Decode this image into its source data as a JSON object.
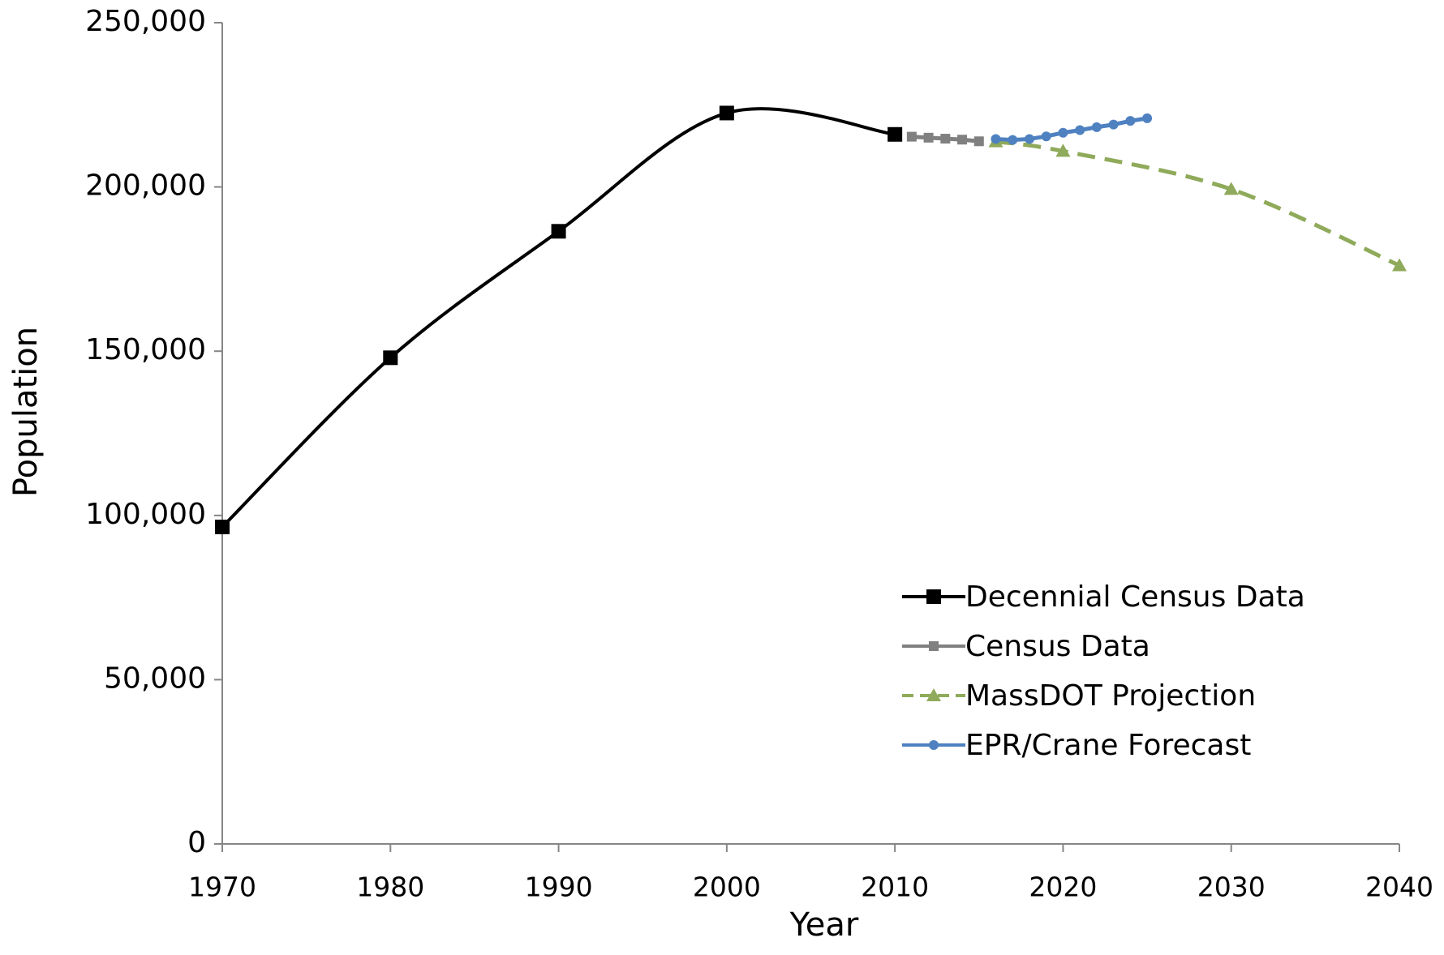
{
  "chart_data": {
    "type": "line",
    "x_label": "Year",
    "y_label": "Population",
    "xlim": [
      1970,
      2040
    ],
    "xticks": [
      1970,
      1980,
      1990,
      2000,
      2010,
      2020,
      2030,
      2040
    ],
    "ylim": [
      0,
      250000
    ],
    "yticks": [
      0,
      {
        "value": 50000,
        "label": "50,000"
      },
      {
        "value": 100000,
        "label": "100,000"
      },
      {
        "value": 150000,
        "label": "150,000"
      },
      {
        "value": 200000,
        "label": "200,000"
      },
      {
        "value": 250000,
        "label": "250,000"
      }
    ],
    "grid": false,
    "legend": "right",
    "series": [
      {
        "name": "Decennial Census Data",
        "color": "#000000",
        "marker": "square",
        "smooth": true,
        "x": [
          1970,
          1980,
          1990,
          2000,
          2010
        ],
        "values": [
          96500,
          148000,
          186500,
          222500,
          216000
        ]
      },
      {
        "name": "Census Data",
        "color": "#808080",
        "marker": "square",
        "x": [
          2011,
          2012,
          2013,
          2014,
          2015
        ],
        "values": [
          215300,
          215000,
          214700,
          214400,
          213900
        ]
      },
      {
        "name": "MassDOT Projection",
        "color": "#8faa5a",
        "marker": "triangle",
        "dashed": true,
        "smooth": true,
        "x": [
          2016,
          2020,
          2030,
          2040
        ],
        "values": [
          213800,
          210900,
          199300,
          176100
        ]
      },
      {
        "name": "EPR/Crane Forecast",
        "color": "#4f81c1",
        "marker": "circle",
        "x": [
          2016,
          2017,
          2018,
          2019,
          2020,
          2021,
          2022,
          2023,
          2024,
          2025
        ],
        "values": [
          214600,
          214300,
          214600,
          215400,
          216500,
          217300,
          218200,
          219000,
          220100,
          220900
        ]
      }
    ]
  }
}
